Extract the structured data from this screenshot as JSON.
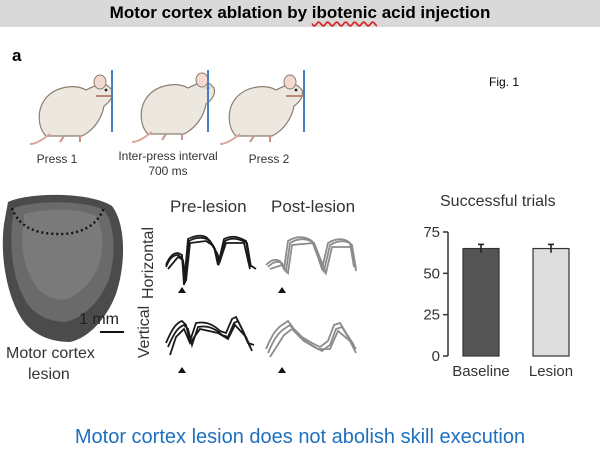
{
  "slide": {
    "title_prefix": "Motor cortex ablation by ",
    "title_flagged_word": "ibotenic",
    "title_suffix": " acid injection",
    "panel_label": "a",
    "figure_label": "Fig. 1",
    "bottom_caption": "Motor cortex lesion does not abolish skill execution"
  },
  "rat_sequence": {
    "captions": {
      "press1": "Press 1",
      "interval_line1": "Inter-press interval",
      "interval_line2": "700 ms",
      "press2": "Press 2"
    }
  },
  "brain_panel": {
    "scale_bar": "1 mm",
    "label_line1": "Motor cortex",
    "label_line2": "lesion"
  },
  "traces": {
    "pre_header": "Pre-lesion",
    "post_header": "Post-lesion",
    "row_horizontal": "Horizontal",
    "row_vertical": "Vertical",
    "colors": {
      "pre": "#1a1a1a",
      "post": "#8c8c8c"
    }
  },
  "chart_data": {
    "type": "bar",
    "title": "Successful trials",
    "categories": [
      "Baseline",
      "Lesion"
    ],
    "values": [
      65,
      65
    ],
    "errors": [
      2.5,
      2.5
    ],
    "ylim": [
      0,
      75
    ],
    "yticks": [
      0,
      25,
      50,
      75
    ],
    "colors": [
      "#555555",
      "#dddddd"
    ]
  }
}
